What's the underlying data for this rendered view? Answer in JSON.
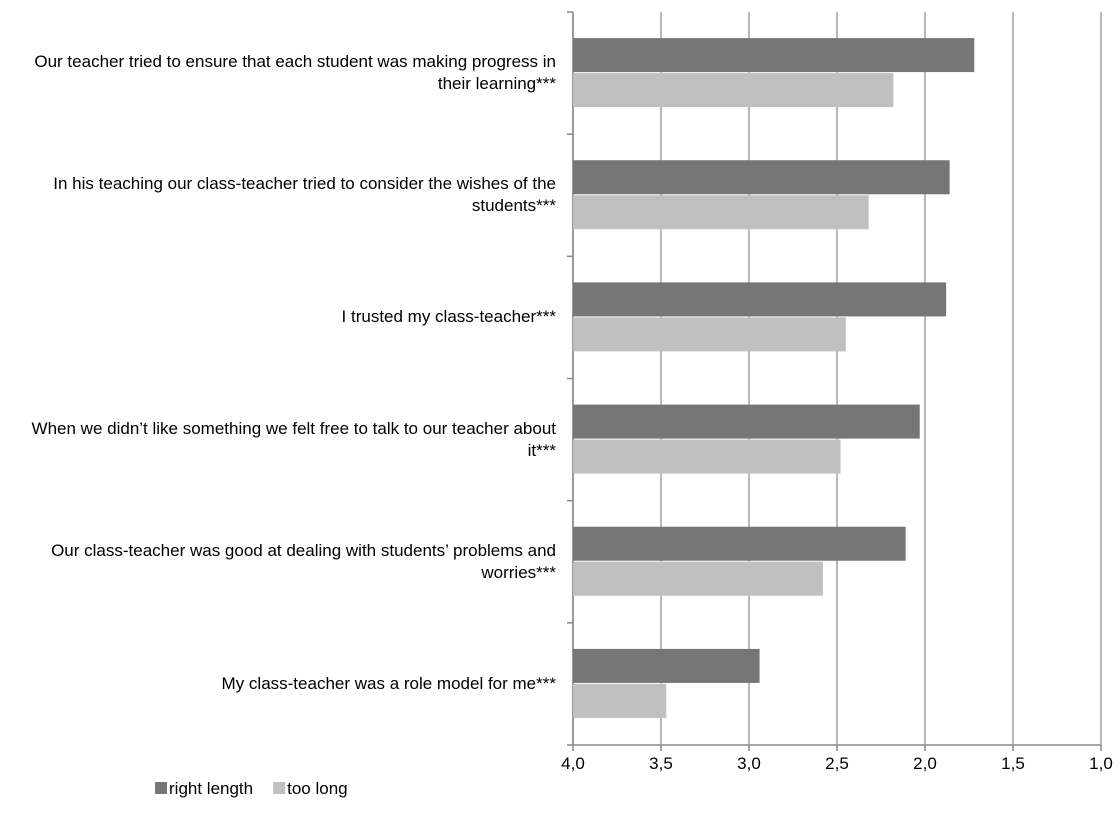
{
  "chart_data": {
    "type": "hbar",
    "categories": [
      "Our teacher tried to ensure that each student was making progress in their learning***",
      "In his teaching our class-teacher tried to consider the wishes of the students***",
      "I trusted my class-teacher***",
      "When we didn’t like something we felt free to talk to our teacher about it***",
      "Our class-teacher was good at dealing with students’ problems and worries***",
      "My class-teacher was a role model for me***"
    ],
    "series": [
      {
        "name": "right length",
        "color": "#767676",
        "values": [
          1.72,
          1.86,
          1.88,
          2.03,
          2.11,
          2.94
        ]
      },
      {
        "name": "too long",
        "color": "#c0c0c0",
        "values": [
          2.18,
          2.32,
          2.45,
          2.48,
          2.58,
          3.47
        ]
      }
    ],
    "xlim": [
      4,
      1
    ],
    "xticks": [
      {
        "value": 4,
        "label": "4,0"
      },
      {
        "value": 3.5,
        "label": "3,5"
      },
      {
        "value": 3,
        "label": "3,0"
      },
      {
        "value": 2.5,
        "label": "2,5"
      },
      {
        "value": 2,
        "label": "2,0"
      },
      {
        "value": 1.5,
        "label": "1,5"
      },
      {
        "value": 1,
        "label": "1,0"
      }
    ],
    "grid": true,
    "legend": "bottom-left"
  }
}
